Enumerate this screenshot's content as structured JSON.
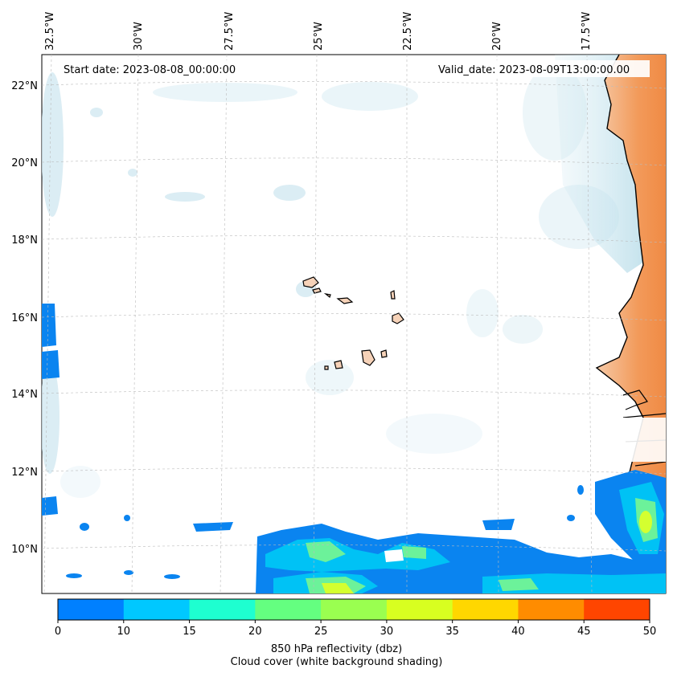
{
  "map": {
    "start_label": "Start date: 2023-08-08_00:00:00",
    "valid_label": "Valid_date: 2023-08-09T13:00:00.00",
    "lon_labels": [
      "32.5°W",
      "30°W",
      "27.5°W",
      "25°W",
      "22.5°W",
      "20°W",
      "17.5°W"
    ],
    "lat_labels": [
      "22°N",
      "20°N",
      "18°N",
      "16°N",
      "14°N",
      "12°N",
      "10°N"
    ],
    "features": [
      "Cape Verde islands",
      "West African coastline",
      "rain bands"
    ]
  },
  "colorbar": {
    "ticks": [
      "0",
      "10",
      "15",
      "20",
      "25",
      "30",
      "35",
      "40",
      "45",
      "50"
    ],
    "colors": [
      "#0080ff",
      "#00c8ff",
      "#1effd0",
      "#64ff80",
      "#9aff50",
      "#d8ff20",
      "#ffd700",
      "#ff8c00",
      "#ff4500"
    ],
    "label": "850 hPa reflectivity (dbz)",
    "sublabel": "Cloud cover (white background shading)"
  },
  "colors": {
    "land": "#f29a5a",
    "cloud": "#cde6ef",
    "rain_light": "#0a84f0",
    "rain_mid": "#00c2f5",
    "rain_high": "#6cf29a",
    "rain_core": "#d4ff30"
  }
}
